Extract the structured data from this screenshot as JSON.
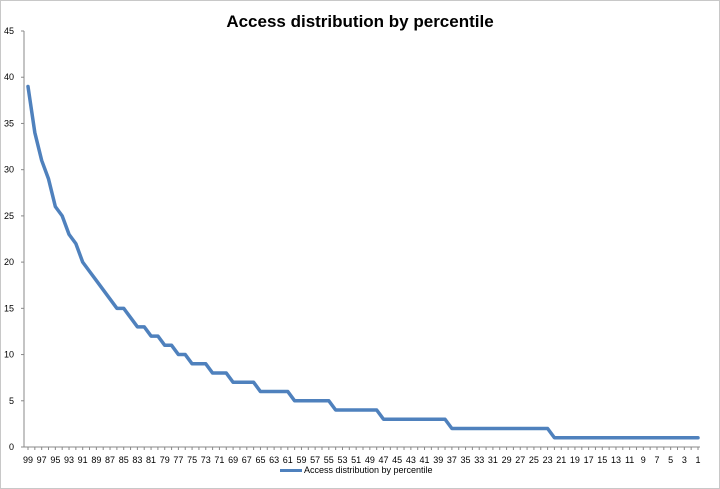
{
  "chart_data": {
    "type": "line",
    "title": "Access distribution by percentile",
    "xlabel": "",
    "ylabel": "",
    "ylim": [
      0,
      45
    ],
    "yticks": [
      0,
      5,
      10,
      15,
      20,
      25,
      30,
      35,
      40,
      45
    ],
    "x": [
      99,
      98,
      97,
      96,
      95,
      94,
      93,
      92,
      91,
      90,
      89,
      88,
      87,
      86,
      85,
      84,
      83,
      82,
      81,
      80,
      79,
      78,
      77,
      76,
      75,
      74,
      73,
      72,
      71,
      70,
      69,
      68,
      67,
      66,
      65,
      64,
      63,
      62,
      61,
      60,
      59,
      58,
      57,
      56,
      55,
      54,
      53,
      52,
      51,
      50,
      49,
      48,
      47,
      46,
      45,
      44,
      43,
      42,
      41,
      40,
      39,
      38,
      37,
      36,
      35,
      34,
      33,
      32,
      31,
      30,
      29,
      28,
      27,
      26,
      25,
      24,
      23,
      22,
      21,
      20,
      19,
      18,
      17,
      16,
      15,
      14,
      13,
      12,
      11,
      10,
      9,
      8,
      7,
      6,
      5,
      4,
      3,
      2,
      1
    ],
    "xticks": [
      99,
      97,
      95,
      93,
      91,
      89,
      87,
      85,
      83,
      81,
      79,
      77,
      75,
      73,
      71,
      69,
      67,
      65,
      63,
      61,
      59,
      57,
      55,
      53,
      51,
      49,
      47,
      45,
      43,
      41,
      39,
      37,
      35,
      33,
      31,
      29,
      27,
      25,
      23,
      21,
      19,
      17,
      15,
      13,
      11,
      9,
      7,
      5,
      3,
      1
    ],
    "series": [
      {
        "name": "Access distribution by percentile",
        "color": "#4f81bd",
        "values": [
          39,
          34,
          31,
          29,
          26,
          25,
          23,
          22,
          20,
          19,
          18,
          17,
          16,
          15,
          15,
          14,
          13,
          13,
          12,
          12,
          11,
          11,
          10,
          10,
          9,
          9,
          9,
          8,
          8,
          8,
          7,
          7,
          7,
          7,
          6,
          6,
          6,
          6,
          6,
          5,
          5,
          5,
          5,
          5,
          5,
          4,
          4,
          4,
          4,
          4,
          4,
          4,
          3,
          3,
          3,
          3,
          3,
          3,
          3,
          3,
          3,
          3,
          2,
          2,
          2,
          2,
          2,
          2,
          2,
          2,
          2,
          2,
          2,
          2,
          2,
          2,
          2,
          1,
          1,
          1,
          1,
          1,
          1,
          1,
          1,
          1,
          1,
          1,
          1,
          1,
          1,
          1,
          1,
          1,
          1,
          1,
          1,
          1,
          1
        ]
      }
    ],
    "grid": false,
    "legend": "bottom"
  }
}
